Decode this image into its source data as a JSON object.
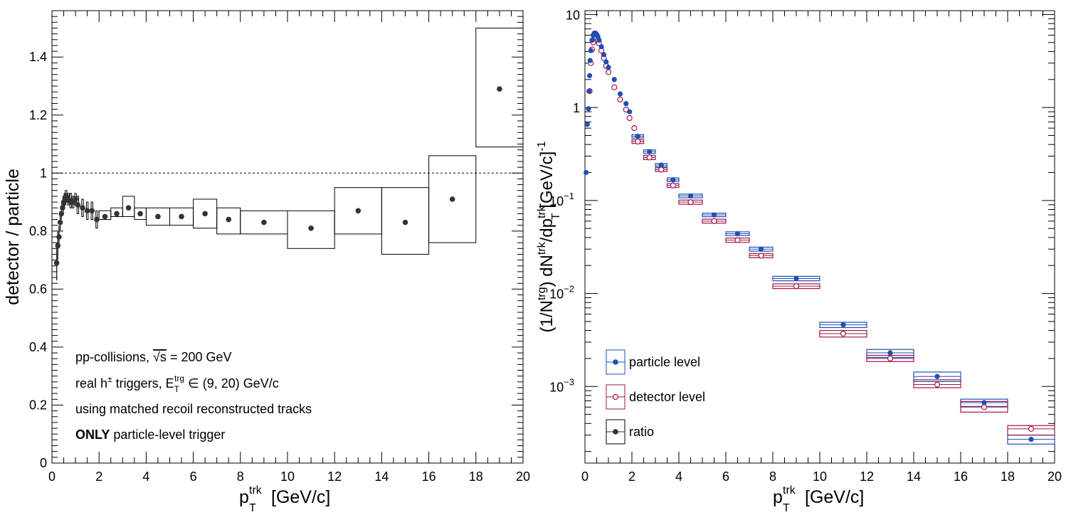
{
  "chart_data": [
    {
      "type": "scatter",
      "xlabel_main": "p",
      "xlabel_sup": "trk",
      "xlabel_sub": "T",
      "xlabel_units": "[GeV/c]",
      "ylabel": "detector / particle",
      "xlim": [
        0,
        20
      ],
      "ylim": [
        0,
        1.56
      ],
      "x_ticks": [
        "0",
        "2",
        "4",
        "6",
        "8",
        "10",
        "12",
        "14",
        "16",
        "18",
        "20"
      ],
      "y_ticks": [
        "0",
        "0.2",
        "0.4",
        "0.6",
        "0.8",
        "1",
        "1.2",
        "1.4"
      ],
      "reference_line": 1.0,
      "series": [
        {
          "points": [
            {
              "x": 0.2,
              "y": 0.69,
              "stat": 0.06
            },
            {
              "x": 0.25,
              "y": 0.75,
              "stat": 0.05
            },
            {
              "x": 0.3,
              "y": 0.78,
              "stat": 0.04
            },
            {
              "x": 0.35,
              "y": 0.83,
              "stat": 0.03
            },
            {
              "x": 0.4,
              "y": 0.86,
              "stat": 0.02
            },
            {
              "x": 0.45,
              "y": 0.88,
              "sys_lo": 0.86,
              "sys_hi": 0.9
            },
            {
              "x": 0.5,
              "y": 0.9,
              "sys_lo": 0.88,
              "sys_hi": 0.92
            },
            {
              "x": 0.55,
              "y": 0.91,
              "sys_lo": 0.89,
              "sys_hi": 0.93
            },
            {
              "x": 0.6,
              "y": 0.92,
              "sys_lo": 0.9,
              "sys_hi": 0.94
            },
            {
              "x": 0.7,
              "y": 0.91,
              "sys_lo": 0.89,
              "sys_hi": 0.93
            },
            {
              "x": 0.8,
              "y": 0.9,
              "sys_lo": 0.88,
              "sys_hi": 0.93
            },
            {
              "x": 0.9,
              "y": 0.9,
              "sys_lo": 0.88,
              "sys_hi": 0.92
            },
            {
              "x": 1.0,
              "y": 0.91,
              "sys_lo": 0.89,
              "sys_hi": 0.93
            },
            {
              "x": 1.1,
              "y": 0.89,
              "sys_lo": 0.86,
              "sys_hi": 0.92
            },
            {
              "x": 1.3,
              "y": 0.88,
              "sys_lo": 0.85,
              "sys_hi": 0.91
            },
            {
              "x": 1.5,
              "y": 0.87,
              "sys_lo": 0.84,
              "sys_hi": 0.9
            },
            {
              "x": 1.7,
              "y": 0.87,
              "sys_lo": 0.84,
              "sys_hi": 0.9
            },
            {
              "x": 1.9,
              "y": 0.84,
              "sys_lo": 0.81,
              "sys_hi": 0.87
            },
            {
              "x": 2.25,
              "y": 0.85,
              "sys_lo": 0.84,
              "sys_hi": 0.87,
              "x0": 2.0,
              "x1": 2.5
            },
            {
              "x": 2.75,
              "y": 0.86,
              "sys_lo": 0.85,
              "sys_hi": 0.88,
              "x0": 2.5,
              "x1": 3.0
            },
            {
              "x": 3.25,
              "y": 0.88,
              "sys_lo": 0.85,
              "sys_hi": 0.92,
              "x0": 3.0,
              "x1": 3.5
            },
            {
              "x": 3.75,
              "y": 0.86,
              "sys_lo": 0.84,
              "sys_hi": 0.88,
              "x0": 3.5,
              "x1": 4.0
            },
            {
              "x": 4.5,
              "y": 0.85,
              "sys_lo": 0.82,
              "sys_hi": 0.88,
              "x0": 4.0,
              "x1": 5.0
            },
            {
              "x": 5.5,
              "y": 0.85,
              "sys_lo": 0.82,
              "sys_hi": 0.88,
              "x0": 5.0,
              "x1": 6.0
            },
            {
              "x": 6.5,
              "y": 0.86,
              "sys_lo": 0.81,
              "sys_hi": 0.91,
              "x0": 6.0,
              "x1": 7.0
            },
            {
              "x": 7.5,
              "y": 0.84,
              "sys_lo": 0.79,
              "sys_hi": 0.88,
              "x0": 7.0,
              "x1": 8.0
            },
            {
              "x": 9.0,
              "y": 0.83,
              "sys_lo": 0.79,
              "sys_hi": 0.87,
              "x0": 8.0,
              "x1": 10.0
            },
            {
              "x": 11.0,
              "y": 0.81,
              "sys_lo": 0.74,
              "sys_hi": 0.87,
              "x0": 10.0,
              "x1": 12.0
            },
            {
              "x": 13.0,
              "y": 0.87,
              "sys_lo": 0.79,
              "sys_hi": 0.95,
              "x0": 12.0,
              "x1": 14.0
            },
            {
              "x": 15.0,
              "y": 0.83,
              "sys_lo": 0.72,
              "sys_hi": 0.95,
              "x0": 14.0,
              "x1": 16.0
            },
            {
              "x": 17.0,
              "y": 0.91,
              "sys_lo": 0.76,
              "sys_hi": 1.06,
              "x0": 16.0,
              "x1": 18.0
            },
            {
              "x": 19.0,
              "y": 1.29,
              "sys_lo": 1.09,
              "sys_hi": 1.5,
              "x0": 18.0,
              "x1": 20.0
            }
          ]
        }
      ],
      "annotations": {
        "line1_pre": "pp-collisions, ",
        "line1_sqrt": "√s",
        "line1_post": " = 200 GeV",
        "line2_pre": "real h",
        "line2_sup_pm": "±",
        "line2_mid": " triggers, E",
        "line2_sub": "T",
        "line2_sup": "trg",
        "line2_post": " ∈ (9, 20) GeV/c",
        "line3": "using matched recoil reconstructed tracks",
        "line4_bold": "ONLY",
        "line4_rest": " particle-level trigger"
      }
    },
    {
      "type": "scatter",
      "y_scale": "log",
      "xlabel_main": "p",
      "xlabel_sup": "trk",
      "xlabel_sub": "T",
      "xlabel_units": "[GeV/c]",
      "ylabel_parts": {
        "a": "(1/N",
        "a_sup": "trg",
        "b": ") dN",
        "b_sup": "trk",
        "c": "/dp",
        "c_sup": "trk",
        "c_sub": "T",
        "d": " [GeV/c]",
        "d_sup": "-1"
      },
      "xlim": [
        0,
        20
      ],
      "ylim": [
        0.00015,
        11
      ],
      "x_ticks": [
        "0",
        "2",
        "4",
        "6",
        "8",
        "10",
        "12",
        "14",
        "16",
        "18",
        "20"
      ],
      "y_ticks": [
        {
          "v": 10,
          "base": "10",
          "exp": ""
        },
        {
          "v": 1,
          "base": "1",
          "exp": ""
        },
        {
          "v": 0.1,
          "base": "10",
          "exp": "−1"
        },
        {
          "v": 0.01,
          "base": "10",
          "exp": "−2"
        },
        {
          "v": 0.001,
          "base": "10",
          "exp": "−3"
        }
      ],
      "legend_position": "bottom-left",
      "legend": [
        {
          "label": "particle level",
          "color": "#1f4eb4",
          "marker": "filled-circle"
        },
        {
          "label": "detector level",
          "color": "#a3164a",
          "marker": "open-circle"
        },
        {
          "label": "ratio",
          "color": "#333333",
          "marker": "filled-circle"
        }
      ],
      "series": [
        {
          "color": "#1f4eb4",
          "marker": "filled",
          "points": [
            {
              "x": 0.05,
              "y": 0.2
            },
            {
              "x": 0.1,
              "y": 0.66
            },
            {
              "x": 0.15,
              "y": 0.97
            },
            {
              "x": 0.17,
              "y": 1.5
            },
            {
              "x": 0.2,
              "y": 2.2
            },
            {
              "x": 0.22,
              "y": 3.2
            },
            {
              "x": 0.25,
              "y": 4.1
            },
            {
              "x": 0.3,
              "y": 5.3
            },
            {
              "x": 0.35,
              "y": 6.0
            },
            {
              "x": 0.4,
              "y": 6.3
            },
            {
              "x": 0.45,
              "y": 6.3
            },
            {
              "x": 0.5,
              "y": 6.1
            },
            {
              "x": 0.55,
              "y": 5.8
            },
            {
              "x": 0.6,
              "y": 5.3
            },
            {
              "x": 0.7,
              "y": 4.5
            },
            {
              "x": 0.8,
              "y": 3.7
            },
            {
              "x": 0.9,
              "y": 3.1
            },
            {
              "x": 1.0,
              "y": 2.7
            },
            {
              "x": 1.25,
              "y": 2.0
            },
            {
              "x": 1.5,
              "y": 1.4
            },
            {
              "x": 1.75,
              "y": 1.1
            },
            {
              "x": 1.9,
              "y": 0.9
            },
            {
              "x": 2.25,
              "y": 0.49,
              "x0": 2.0,
              "x1": 2.5,
              "sys_lo": 0.47,
              "sys_hi": 0.51
            },
            {
              "x": 2.75,
              "y": 0.335,
              "x0": 2.5,
              "x1": 3.0,
              "sys_lo": 0.32,
              "sys_hi": 0.35
            },
            {
              "x": 3.25,
              "y": 0.24,
              "x0": 3.0,
              "x1": 3.5,
              "sys_lo": 0.23,
              "sys_hi": 0.25
            },
            {
              "x": 3.75,
              "y": 0.167,
              "x0": 3.5,
              "x1": 4.0,
              "sys_lo": 0.16,
              "sys_hi": 0.175
            },
            {
              "x": 4.5,
              "y": 0.112,
              "x0": 4.0,
              "x1": 5.0,
              "sys_lo": 0.107,
              "sys_hi": 0.117
            },
            {
              "x": 5.5,
              "y": 0.07,
              "x0": 5.0,
              "x1": 6.0,
              "sys_lo": 0.067,
              "sys_hi": 0.073
            },
            {
              "x": 6.5,
              "y": 0.044,
              "x0": 6.0,
              "x1": 7.0,
              "sys_lo": 0.042,
              "sys_hi": 0.046
            },
            {
              "x": 7.5,
              "y": 0.03,
              "x0": 7.0,
              "x1": 8.0,
              "sys_lo": 0.0285,
              "sys_hi": 0.0315
            },
            {
              "x": 9.0,
              "y": 0.0145,
              "x0": 8.0,
              "x1": 10.0,
              "sys_lo": 0.0137,
              "sys_hi": 0.0153
            },
            {
              "x": 11.0,
              "y": 0.0046,
              "x0": 10.0,
              "x1": 12.0,
              "sys_lo": 0.0043,
              "sys_hi": 0.0049
            },
            {
              "x": 13.0,
              "y": 0.0023,
              "x0": 12.0,
              "x1": 14.0,
              "sys_lo": 0.00205,
              "sys_hi": 0.0025
            },
            {
              "x": 15.0,
              "y": 0.00128,
              "x0": 14.0,
              "x1": 16.0,
              "sys_lo": 0.00113,
              "sys_hi": 0.00143
            },
            {
              "x": 17.0,
              "y": 0.00067,
              "x0": 16.0,
              "x1": 18.0,
              "sys_lo": 0.00061,
              "sys_hi": 0.00073
            },
            {
              "x": 19.0,
              "y": 0.00027,
              "x0": 18.0,
              "x1": 20.0,
              "sys_lo": 0.00024,
              "sys_hi": 0.0003
            }
          ]
        },
        {
          "color": "#a3164a",
          "marker": "open",
          "points": [
            {
              "x": 0.2,
              "y": 1.5
            },
            {
              "x": 0.25,
              "y": 3.0
            },
            {
              "x": 0.3,
              "y": 4.2
            },
            {
              "x": 0.35,
              "y": 5.0
            },
            {
              "x": 0.4,
              "y": 5.5
            },
            {
              "x": 0.45,
              "y": 5.7
            },
            {
              "x": 0.5,
              "y": 5.6
            },
            {
              "x": 0.55,
              "y": 5.3
            },
            {
              "x": 0.6,
              "y": 4.9
            },
            {
              "x": 0.7,
              "y": 4.1
            },
            {
              "x": 0.8,
              "y": 3.4
            },
            {
              "x": 0.9,
              "y": 2.8
            },
            {
              "x": 1.0,
              "y": 2.4
            },
            {
              "x": 1.25,
              "y": 1.65
            },
            {
              "x": 1.5,
              "y": 1.22
            },
            {
              "x": 1.75,
              "y": 0.95
            },
            {
              "x": 1.9,
              "y": 0.77
            },
            {
              "x": 2.1,
              "y": 0.6
            },
            {
              "x": 2.25,
              "y": 0.43,
              "x0": 2.0,
              "x1": 2.5,
              "sys_lo": 0.41,
              "sys_hi": 0.45
            },
            {
              "x": 2.75,
              "y": 0.29,
              "x0": 2.5,
              "x1": 3.0,
              "sys_lo": 0.275,
              "sys_hi": 0.305
            },
            {
              "x": 3.25,
              "y": 0.215,
              "x0": 3.0,
              "x1": 3.5,
              "sys_lo": 0.205,
              "sys_hi": 0.225
            },
            {
              "x": 3.75,
              "y": 0.145,
              "x0": 3.5,
              "x1": 4.0,
              "sys_lo": 0.138,
              "sys_hi": 0.152
            },
            {
              "x": 4.5,
              "y": 0.096,
              "x0": 4.0,
              "x1": 5.0,
              "sys_lo": 0.091,
              "sys_hi": 0.101
            },
            {
              "x": 5.5,
              "y": 0.06,
              "x0": 5.0,
              "x1": 6.0,
              "sys_lo": 0.057,
              "sys_hi": 0.063
            },
            {
              "x": 6.5,
              "y": 0.0375,
              "x0": 6.0,
              "x1": 7.0,
              "sys_lo": 0.0355,
              "sys_hi": 0.0395
            },
            {
              "x": 7.5,
              "y": 0.0255,
              "x0": 7.0,
              "x1": 8.0,
              "sys_lo": 0.0242,
              "sys_hi": 0.0268
            },
            {
              "x": 9.0,
              "y": 0.012,
              "x0": 8.0,
              "x1": 10.0,
              "sys_lo": 0.0113,
              "sys_hi": 0.0127
            },
            {
              "x": 11.0,
              "y": 0.0037,
              "x0": 10.0,
              "x1": 12.0,
              "sys_lo": 0.0034,
              "sys_hi": 0.004
            },
            {
              "x": 13.0,
              "y": 0.002,
              "x0": 12.0,
              "x1": 14.0,
              "sys_lo": 0.00185,
              "sys_hi": 0.00216
            },
            {
              "x": 15.0,
              "y": 0.00105,
              "x0": 14.0,
              "x1": 16.0,
              "sys_lo": 0.00097,
              "sys_hi": 0.00118
            },
            {
              "x": 17.0,
              "y": 0.0006,
              "x0": 16.0,
              "x1": 18.0,
              "sys_lo": 0.00053,
              "sys_hi": 0.00069
            },
            {
              "x": 19.0,
              "y": 0.00035,
              "x0": 18.0,
              "x1": 20.0,
              "sys_lo": 0.0003,
              "sys_hi": 0.00038
            }
          ]
        }
      ]
    }
  ]
}
